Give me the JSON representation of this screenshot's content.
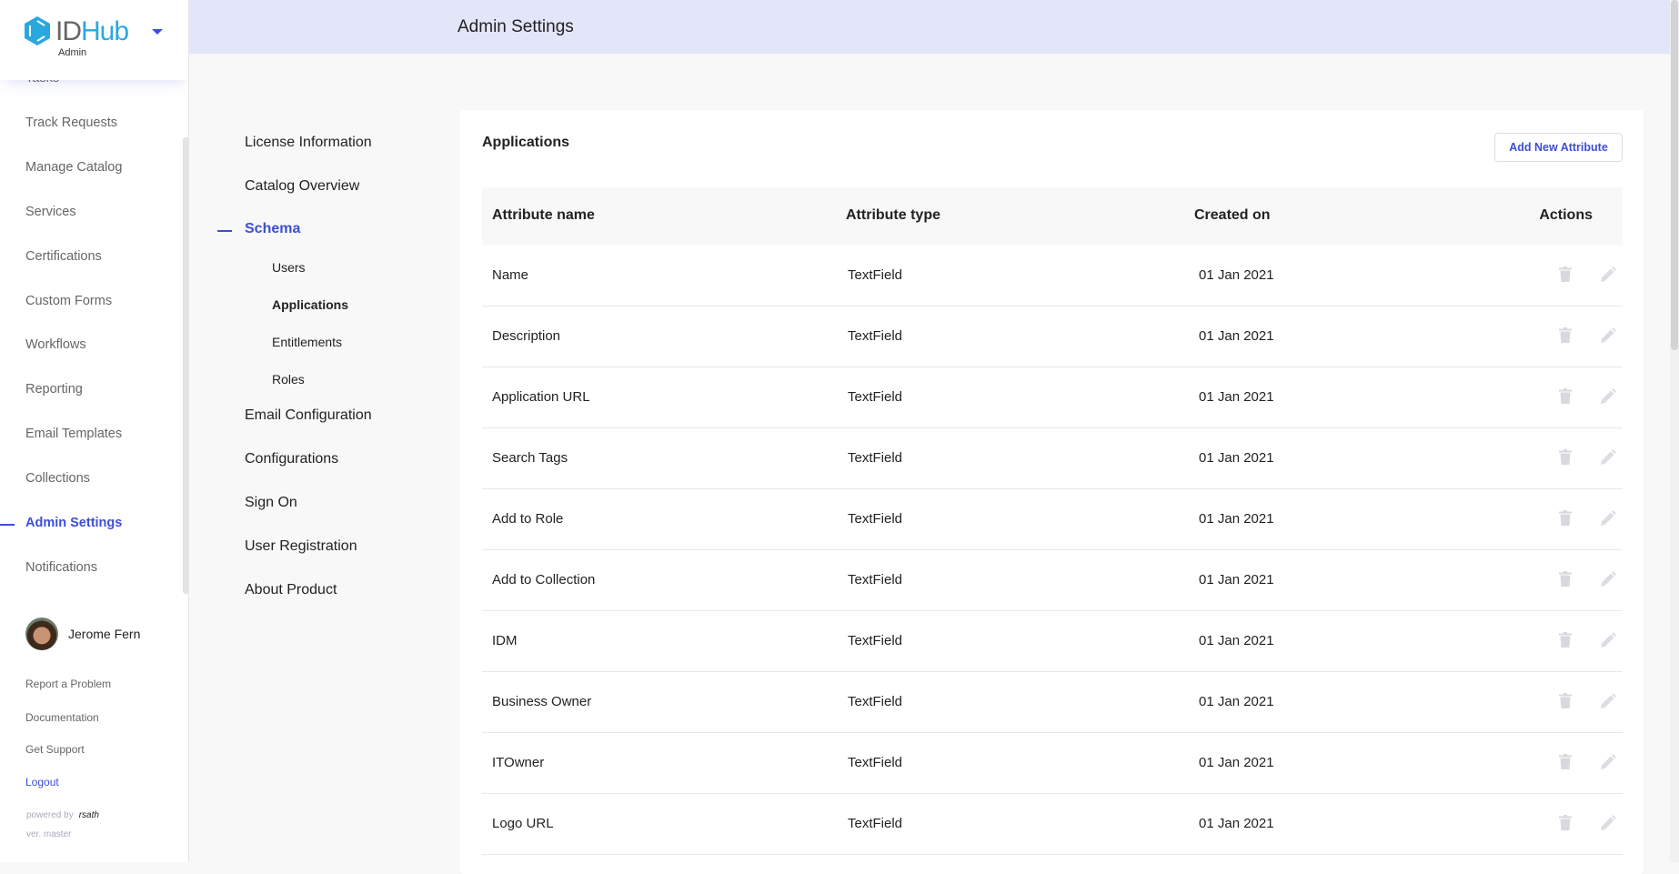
{
  "app": {
    "brand_id": "ID",
    "brand_hub": "Hub",
    "role": "Admin"
  },
  "header": {
    "title": "Admin Settings"
  },
  "sidebar": {
    "items": [
      {
        "label": "Tasks",
        "active": false
      },
      {
        "label": "Track Requests",
        "active": false
      },
      {
        "label": "Manage Catalog",
        "active": false
      },
      {
        "label": "Services",
        "active": false
      },
      {
        "label": "Certifications",
        "active": false
      },
      {
        "label": "Custom Forms",
        "active": false
      },
      {
        "label": "Workflows",
        "active": false
      },
      {
        "label": "Reporting",
        "active": false
      },
      {
        "label": "Email Templates",
        "active": false
      },
      {
        "label": "Collections",
        "active": false
      },
      {
        "label": "Admin Settings",
        "active": true
      },
      {
        "label": "Notifications",
        "active": false
      }
    ],
    "user": {
      "name": "Jerome Fern"
    },
    "footer_links": [
      "Report a Problem",
      "Documentation",
      "Get Support",
      "Logout"
    ],
    "powered_by": "powered by",
    "powered_brand": "rsath",
    "version": "ver. master"
  },
  "settings_nav": {
    "items": [
      "License Information",
      "Catalog Overview",
      "Schema",
      "Email Configuration",
      "Configurations",
      "Sign On",
      "User Registration",
      "About Product"
    ],
    "active": "Schema",
    "schema_children": [
      "Users",
      "Applications",
      "Entitlements",
      "Roles"
    ],
    "active_child": "Applications"
  },
  "main": {
    "title": "Applications",
    "add_button": "Add New Attribute",
    "columns": [
      "Attribute name",
      "Attribute type",
      "Created on",
      "Actions"
    ],
    "rows": [
      [
        "Name",
        "TextField",
        "01 Jan 2021"
      ],
      [
        "Description",
        "TextField",
        "01 Jan 2021"
      ],
      [
        "Application URL",
        "TextField",
        "01 Jan 2021"
      ],
      [
        "Search Tags",
        "TextField",
        "01 Jan 2021"
      ],
      [
        "Add to Role",
        "TextField",
        "01 Jan 2021"
      ],
      [
        "Add to Collection",
        "TextField",
        "01 Jan 2021"
      ],
      [
        "IDM",
        "TextField",
        "01 Jan 2021"
      ],
      [
        "Business Owner",
        "TextField",
        "01 Jan 2021"
      ],
      [
        "ITOwner",
        "TextField",
        "01 Jan 2021"
      ],
      [
        "Logo URL",
        "TextField",
        "01 Jan 2021"
      ]
    ]
  },
  "colors": {
    "accent": "#3d4ed8",
    "header_bg": "#e3e5f8",
    "brand": "#29a8df",
    "icon_disabled": "#d8d9de"
  }
}
